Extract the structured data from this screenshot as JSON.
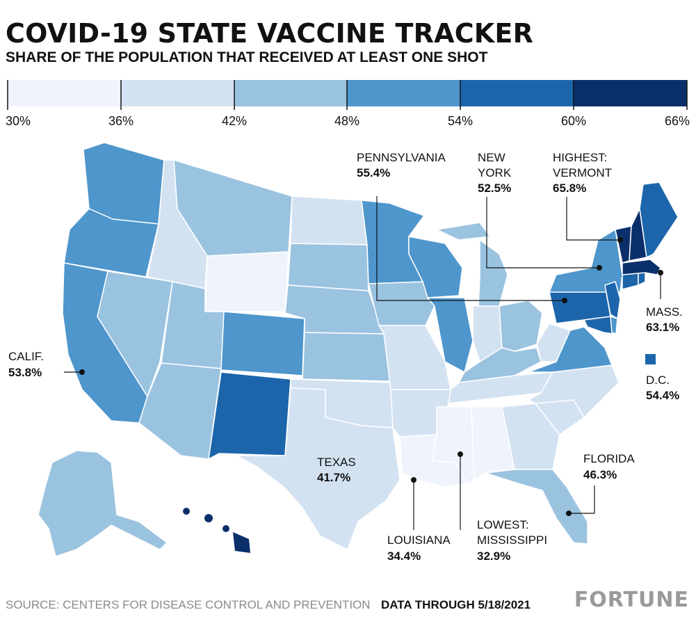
{
  "title": "COVID-19 STATE VACCINE TRACKER",
  "subtitle": "SHARE OF THE POPULATION THAT RECEIVED AT LEAST ONE SHOT",
  "legend": {
    "ticks": [
      "30%",
      "36%",
      "42%",
      "48%",
      "54%",
      "60%",
      "66%"
    ],
    "colors": [
      "#eef3fc",
      "#d3e2f1",
      "#9ac3e0",
      "#4e96cc",
      "#1c65ab",
      "#0b2f6b"
    ]
  },
  "callouts": {
    "pennsylvania": {
      "name": "PENNSYLVANIA",
      "value": "55.4%"
    },
    "new_york": {
      "name_line1": "NEW",
      "name_line2": "YORK",
      "value": "52.5%"
    },
    "vermont": {
      "name_line1": "HIGHEST:",
      "name_line2": "VERMONT",
      "value": "65.8%"
    },
    "mass": {
      "name": "MASS.",
      "value": "63.1%"
    },
    "dc": {
      "name": "D.C.",
      "value": "54.4%"
    },
    "calif": {
      "name": "CALIF.",
      "value": "53.8%"
    },
    "texas": {
      "name": "TEXAS",
      "value": "41.7%"
    },
    "florida": {
      "name": "FLORIDA",
      "value": "46.3%"
    },
    "louisiana": {
      "name": "LOUISIANA",
      "value": "34.4%"
    },
    "mississippi": {
      "name_line1": "LOWEST:",
      "name_line2": "MISSISSIPPI",
      "value": "32.9%"
    }
  },
  "footer": {
    "source": "SOURCE: CENTERS FOR DISEASE CONTROL AND PREVENTION",
    "date": "DATA THROUGH 5/18/2021",
    "brand": "FORTUNE"
  }
}
